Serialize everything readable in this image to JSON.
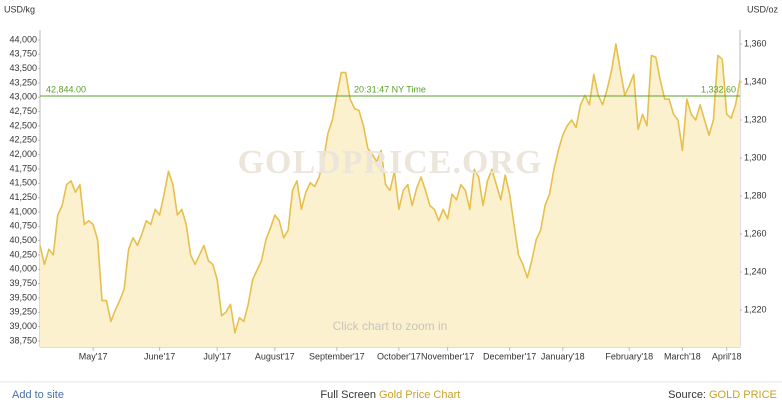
{
  "chart_data": {
    "type": "line",
    "y_label": "USD/kg",
    "y2_label": "USD/oz",
    "watermark": "GOLDPRICE.ORG",
    "hint": "Click chart to zoom in",
    "reference": {
      "value": 1332.6,
      "label": "1,332.60",
      "left": {
        "value": 42844,
        "label": "42,844.00"
      },
      "time": "20:31:47 NY Time",
      "color": "#5aa02c"
    },
    "categories": [
      null,
      null,
      null,
      null,
      null,
      null,
      null,
      null,
      null,
      null,
      null,
      null,
      "May'17",
      null,
      null,
      null,
      null,
      null,
      null,
      null,
      null,
      null,
      null,
      null,
      null,
      null,
      null,
      "June'17",
      null,
      null,
      null,
      null,
      null,
      null,
      null,
      null,
      null,
      null,
      null,
      null,
      "July'17",
      null,
      null,
      null,
      null,
      null,
      null,
      null,
      null,
      null,
      null,
      null,
      null,
      "August'17",
      null,
      null,
      null,
      null,
      null,
      null,
      null,
      null,
      null,
      null,
      null,
      null,
      null,
      "September'17",
      null,
      null,
      null,
      null,
      null,
      null,
      null,
      null,
      null,
      null,
      null,
      null,
      null,
      "October'17",
      null,
      null,
      null,
      null,
      null,
      null,
      null,
      null,
      null,
      null,
      "November'17",
      null,
      null,
      null,
      null,
      null,
      null,
      null,
      null,
      null,
      null,
      null,
      null,
      null,
      "December'17",
      null,
      null,
      null,
      null,
      null,
      null,
      null,
      null,
      null,
      null,
      null,
      "January'18",
      null,
      null,
      null,
      null,
      null,
      null,
      null,
      null,
      null,
      null,
      null,
      null,
      null,
      null,
      "February'18",
      null,
      null,
      null,
      null,
      null,
      null,
      null,
      null,
      null,
      null,
      null,
      "March'18",
      null,
      null,
      null,
      null,
      null,
      null,
      null,
      null,
      null,
      "April'18",
      null,
      null,
      null
    ],
    "series": [
      {
        "name": "Gold",
        "color": "#e6c04c",
        "fill": "#fcf1cf",
        "axis": "y2",
        "values": [
          1254,
          1244,
          1252,
          1249,
          1270,
          1275,
          1286,
          1288,
          1282,
          1286,
          1265,
          1267,
          1265,
          1257,
          1225,
          1225,
          1214,
          1220,
          1225,
          1231,
          1252,
          1258,
          1254,
          1260,
          1267,
          1265,
          1273,
          1270,
          1281,
          1293,
          1286,
          1270,
          1273,
          1265,
          1249,
          1244,
          1249,
          1254,
          1246,
          1244,
          1236,
          1217,
          1219,
          1223,
          1208,
          1216,
          1214,
          1223,
          1236,
          1241,
          1246,
          1257,
          1263,
          1270,
          1267,
          1258,
          1262,
          1283,
          1288,
          1273,
          1282,
          1287,
          1285,
          1290,
          1299,
          1313,
          1320,
          1333,
          1345,
          1345,
          1331,
          1326,
          1325,
          1317,
          1305,
          1302,
          1298,
          1304,
          1286,
          1283,
          1293,
          1273,
          1283,
          1286,
          1275,
          1284,
          1290,
          1283,
          1275,
          1273,
          1267,
          1273,
          1268,
          1281,
          1278,
          1286,
          1283,
          1273,
          1294,
          1290,
          1275,
          1288,
          1294,
          1286,
          1278,
          1291,
          1281,
          1265,
          1249,
          1244,
          1237,
          1246,
          1257,
          1262,
          1275,
          1281,
          1294,
          1304,
          1312,
          1317,
          1320,
          1316,
          1328,
          1333,
          1328,
          1344,
          1333,
          1328,
          1336,
          1346,
          1360,
          1346,
          1333,
          1338,
          1344,
          1315,
          1323,
          1317,
          1354,
          1353,
          1341,
          1331,
          1331,
          1323,
          1320,
          1304,
          1331,
          1323,
          1320,
          1328,
          1320,
          1312,
          1320,
          1354,
          1352,
          1323,
          1321,
          1328,
          1341
        ]
      }
    ],
    "ylim": [
      38750,
      44000
    ],
    "yticks": [
      {
        "value": 38750,
        "label": "38,750"
      },
      {
        "value": 39000,
        "label": "39,000"
      },
      {
        "value": 39250,
        "label": "39,250"
      },
      {
        "value": 39500,
        "label": "39,500"
      },
      {
        "value": 39750,
        "label": "39,750"
      },
      {
        "value": 40000,
        "label": "40,000"
      },
      {
        "value": 40250,
        "label": "40,250"
      },
      {
        "value": 40500,
        "label": "40,500"
      },
      {
        "value": 40750,
        "label": "40,750"
      },
      {
        "value": 41000,
        "label": "41,000"
      },
      {
        "value": 41250,
        "label": "41,250"
      },
      {
        "value": 41500,
        "label": "41,500"
      },
      {
        "value": 41750,
        "label": "41,750"
      },
      {
        "value": 42000,
        "label": "42,000"
      },
      {
        "value": 42250,
        "label": "42,250"
      },
      {
        "value": 42500,
        "label": "42,500"
      },
      {
        "value": 42750,
        "label": "42,750"
      },
      {
        "value": 43000,
        "label": "43,000"
      },
      {
        "value": 43250,
        "label": "43,250"
      },
      {
        "value": 43500,
        "label": "43,500"
      },
      {
        "value": 43750,
        "label": "43,750"
      },
      {
        "value": 44000,
        "label": "44,000"
      }
    ],
    "y2lim": [
      1203.7,
      1362.1
    ],
    "y2ticks": [
      {
        "value": 1220,
        "label": "1,220"
      },
      {
        "value": 1240,
        "label": "1,240"
      },
      {
        "value": 1260,
        "label": "1,260"
      },
      {
        "value": 1280,
        "label": "1,280"
      },
      {
        "value": 1300,
        "label": "1,300"
      },
      {
        "value": 1320,
        "label": "1,320"
      },
      {
        "value": 1340,
        "label": "1,340"
      },
      {
        "value": 1360,
        "label": "1,360"
      }
    ],
    "grid": false
  },
  "footer": {
    "left": "Add to site",
    "center_prefix": "Full Screen",
    "center_link": "Gold Price Chart",
    "right_prefix": "Source:",
    "right_link": "GOLD PRICE"
  }
}
